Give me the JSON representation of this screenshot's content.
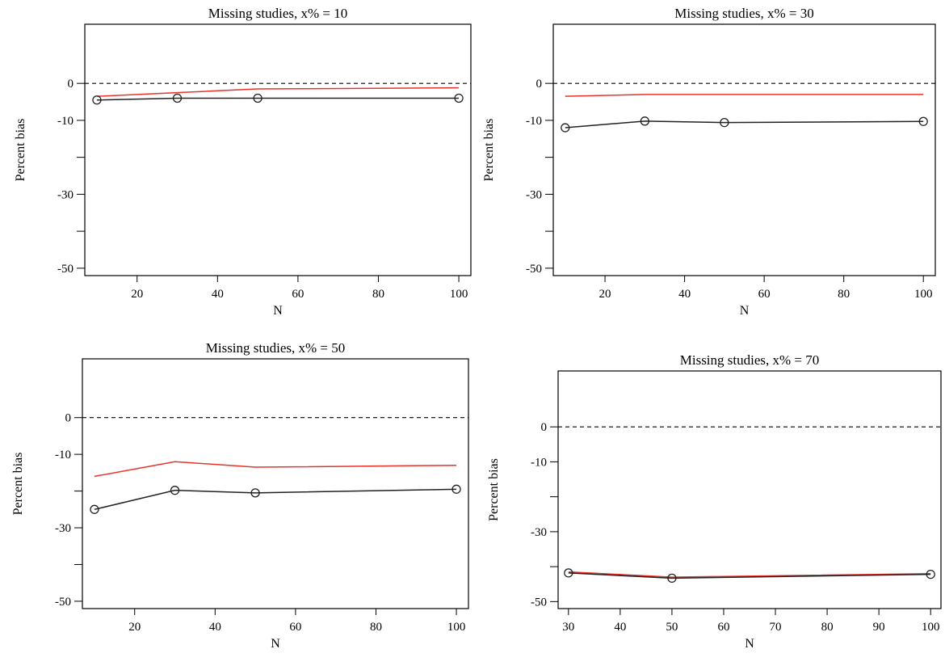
{
  "chart_data": [
    {
      "type": "line",
      "title": "Missing studies, x% = 10",
      "xlabel": "N",
      "ylabel": "Percent bias",
      "x": [
        10,
        30,
        50,
        100
      ],
      "xticks": [
        "20",
        "40",
        "60",
        "80",
        "100"
      ],
      "xtick_values": [
        20,
        40,
        60,
        80,
        100
      ],
      "yticks": [
        "0",
        "-10",
        "-30",
        "-50"
      ],
      "ytick_values": [
        0,
        -10,
        -30,
        -50
      ],
      "yminor_values": [
        -20,
        -40
      ],
      "xlim": [
        7,
        103
      ],
      "ylim": [
        -52,
        16
      ],
      "reference_line": 0,
      "series": [
        {
          "values": [
            -3.5,
            -2.5,
            -1.5,
            -1.2
          ],
          "color": "#e8322a",
          "markers": false
        },
        {
          "values": [
            -4.5,
            -4.0,
            -4.0,
            -4.0
          ],
          "color": "#222222",
          "markers": true
        }
      ]
    },
    {
      "type": "line",
      "title": "Missing studies, x% = 30",
      "xlabel": "N",
      "ylabel": "Percent bias",
      "x": [
        10,
        30,
        50,
        100
      ],
      "xticks": [
        "20",
        "40",
        "60",
        "80",
        "100"
      ],
      "xtick_values": [
        20,
        40,
        60,
        80,
        100
      ],
      "yticks": [
        "0",
        "-10",
        "-30",
        "-50"
      ],
      "ytick_values": [
        0,
        -10,
        -30,
        -50
      ],
      "yminor_values": [
        -20,
        -40
      ],
      "xlim": [
        7,
        103
      ],
      "ylim": [
        -52,
        16
      ],
      "reference_line": 0,
      "series": [
        {
          "values": [
            -3.5,
            -3.0,
            -3.0,
            -3.0
          ],
          "color": "#e8322a",
          "markers": false
        },
        {
          "values": [
            -12.0,
            -10.2,
            -10.6,
            -10.3
          ],
          "color": "#222222",
          "markers": true
        }
      ]
    },
    {
      "type": "line",
      "title": "Missing studies, x% = 50",
      "xlabel": "N",
      "ylabel": "Percent bias",
      "x": [
        10,
        30,
        50,
        100
      ],
      "xticks": [
        "20",
        "40",
        "60",
        "80",
        "100"
      ],
      "xtick_values": [
        20,
        40,
        60,
        80,
        100
      ],
      "yticks": [
        "0",
        "-10",
        "-30",
        "-50"
      ],
      "ytick_values": [
        0,
        -10,
        -30,
        -50
      ],
      "yminor_values": [
        -20,
        -40
      ],
      "xlim": [
        7,
        103
      ],
      "ylim": [
        -52,
        16
      ],
      "reference_line": 0,
      "series": [
        {
          "values": [
            -16.0,
            -12.0,
            -13.5,
            -13.0
          ],
          "color": "#e8322a",
          "markers": false
        },
        {
          "values": [
            -25.0,
            -19.8,
            -20.5,
            -19.5
          ],
          "color": "#222222",
          "markers": true
        }
      ]
    },
    {
      "type": "line",
      "title": "Missing studies, x% = 70",
      "xlabel": "N",
      "ylabel": "Percent bias",
      "x": [
        30,
        50,
        100
      ],
      "xticks": [
        "30",
        "40",
        "50",
        "60",
        "70",
        "80",
        "90",
        "100"
      ],
      "xtick_values": [
        30,
        40,
        50,
        60,
        70,
        80,
        90,
        100
      ],
      "yticks": [
        "0",
        "-10",
        "-30",
        "-50"
      ],
      "ytick_values": [
        0,
        -10,
        -30,
        -50
      ],
      "yminor_values": [
        -20,
        -40
      ],
      "xlim": [
        28,
        102
      ],
      "ylim": [
        -52,
        16
      ],
      "reference_line": 0,
      "series": [
        {
          "values": [
            -41.5,
            -43.0,
            -42.0
          ],
          "color": "#e8322a",
          "markers": false
        },
        {
          "values": [
            -41.8,
            -43.3,
            -42.2
          ],
          "color": "#222222",
          "markers": true
        }
      ]
    }
  ]
}
